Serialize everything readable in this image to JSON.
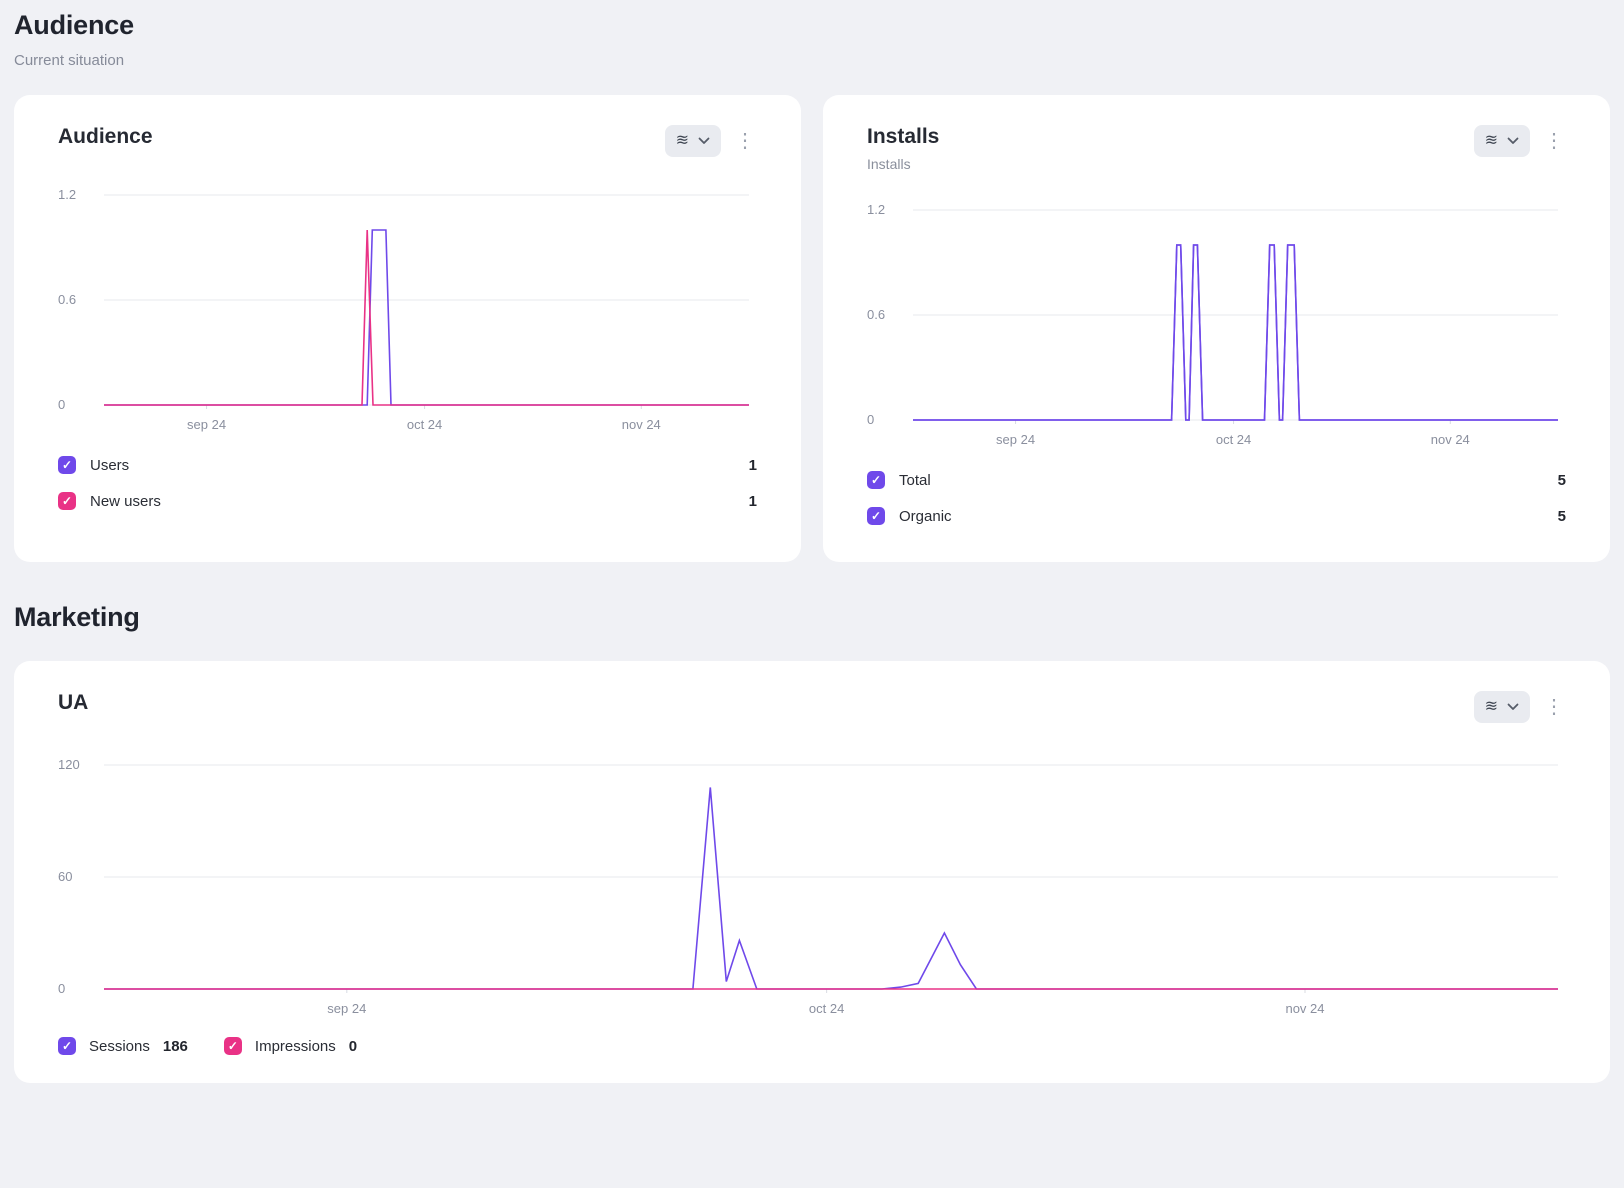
{
  "sections": {
    "audience": {
      "title": "Audience",
      "subtitle": "Current situation"
    },
    "marketing": {
      "title": "Marketing"
    }
  },
  "colors": {
    "purple": "#6f49ea",
    "pink": "#e93286"
  },
  "cards": [
    {
      "title": "Audience",
      "legend": [
        {
          "label": "Users",
          "color": "purple",
          "value": "1"
        },
        {
          "label": "New users",
          "color": "pink",
          "value": "1"
        }
      ]
    },
    {
      "title": "Installs",
      "subtitle": "Installs",
      "legend": [
        {
          "label": "Total",
          "color": "purple",
          "value": "5"
        },
        {
          "label": "Organic",
          "color": "purple",
          "value": "5"
        }
      ]
    },
    {
      "title": "UA",
      "legend": [
        {
          "label": "Sessions",
          "color": "purple",
          "value": "186"
        },
        {
          "label": "Impressions",
          "color": "pink",
          "value": "0"
        }
      ]
    }
  ],
  "chart_data": {
    "audience": {
      "type": "line",
      "title": "Audience",
      "ylim": [
        0,
        1.2
      ],
      "yticks": [
        {
          "v": 0,
          "label": "0"
        },
        {
          "v": 0.6,
          "label": "0.6"
        },
        {
          "v": 1.2,
          "label": "1.2"
        }
      ],
      "xticks": [
        {
          "pos": 0.159,
          "label": "sep 24"
        },
        {
          "pos": 0.497,
          "label": "oct 24"
        },
        {
          "pos": 0.833,
          "label": "nov 24"
        }
      ],
      "x_unit": "fraction-of-axis",
      "series": [
        {
          "name": "Users",
          "color": "#6f49ea",
          "points": [
            [
              0,
              0
            ],
            [
              0.408,
              0
            ],
            [
              0.416,
              1
            ],
            [
              0.437,
              1
            ],
            [
              0.445,
              0
            ],
            [
              1,
              0
            ]
          ]
        },
        {
          "name": "New users",
          "color": "#e93286",
          "points": [
            [
              0,
              0
            ],
            [
              0.4,
              0
            ],
            [
              0.408,
              1
            ],
            [
              0.417,
              0
            ],
            [
              1,
              0
            ]
          ]
        }
      ]
    },
    "installs": {
      "type": "line",
      "title": "Installs",
      "ylim": [
        0,
        1.2
      ],
      "yticks": [
        {
          "v": 0,
          "label": "0"
        },
        {
          "v": 0.6,
          "label": "0.6"
        },
        {
          "v": 1.2,
          "label": "1.2"
        }
      ],
      "xticks": [
        {
          "pos": 0.159,
          "label": "sep 24"
        },
        {
          "pos": 0.497,
          "label": "oct 24"
        },
        {
          "pos": 0.833,
          "label": "nov 24"
        }
      ],
      "x_unit": "fraction-of-axis",
      "series": [
        {
          "name": "Total",
          "color": "#6f49ea",
          "points": [
            [
              0,
              0
            ],
            [
              0.401,
              0
            ],
            [
              0.409,
              1
            ],
            [
              0.415,
              1
            ],
            [
              0.423,
              0
            ],
            [
              0.428,
              0
            ],
            [
              0.435,
              1
            ],
            [
              0.441,
              1
            ],
            [
              0.449,
              0
            ],
            [
              0.545,
              0
            ],
            [
              0.553,
              1
            ],
            [
              0.56,
              1
            ],
            [
              0.568,
              0
            ],
            [
              0.573,
              0
            ],
            [
              0.581,
              1
            ],
            [
              0.591,
              1
            ],
            [
              0.599,
              0
            ],
            [
              1,
              0
            ]
          ]
        },
        {
          "name": "Organic",
          "color": "#6f49ea",
          "points": [
            [
              0,
              0
            ],
            [
              0.401,
              0
            ],
            [
              0.409,
              1
            ],
            [
              0.415,
              1
            ],
            [
              0.423,
              0
            ],
            [
              0.428,
              0
            ],
            [
              0.435,
              1
            ],
            [
              0.441,
              1
            ],
            [
              0.449,
              0
            ],
            [
              0.545,
              0
            ],
            [
              0.553,
              1
            ],
            [
              0.56,
              1
            ],
            [
              0.568,
              0
            ],
            [
              0.573,
              0
            ],
            [
              0.581,
              1
            ],
            [
              0.591,
              1
            ],
            [
              0.599,
              0
            ],
            [
              1,
              0
            ]
          ]
        }
      ]
    },
    "ua": {
      "type": "line",
      "title": "UA",
      "ylim": [
        0,
        120
      ],
      "yticks": [
        {
          "v": 0,
          "label": "0"
        },
        {
          "v": 60,
          "label": "60"
        },
        {
          "v": 120,
          "label": "120"
        }
      ],
      "xticks": [
        {
          "pos": 0.167,
          "label": "sep 24"
        },
        {
          "pos": 0.497,
          "label": "oct 24"
        },
        {
          "pos": 0.826,
          "label": "nov 24"
        }
      ],
      "x_unit": "fraction-of-axis",
      "series": [
        {
          "name": "Sessions",
          "color": "#6f49ea",
          "points": [
            [
              0,
              0
            ],
            [
              0.405,
              0
            ],
            [
              0.417,
              108
            ],
            [
              0.428,
              4
            ],
            [
              0.437,
              26
            ],
            [
              0.449,
              0
            ],
            [
              0.535,
              0
            ],
            [
              0.548,
              1
            ],
            [
              0.56,
              3
            ],
            [
              0.578,
              30
            ],
            [
              0.589,
              13
            ],
            [
              0.6,
              0
            ],
            [
              1,
              0
            ]
          ]
        },
        {
          "name": "Impressions",
          "color": "#e93286",
          "points": [
            [
              0,
              0
            ],
            [
              1,
              0
            ]
          ]
        }
      ]
    }
  }
}
